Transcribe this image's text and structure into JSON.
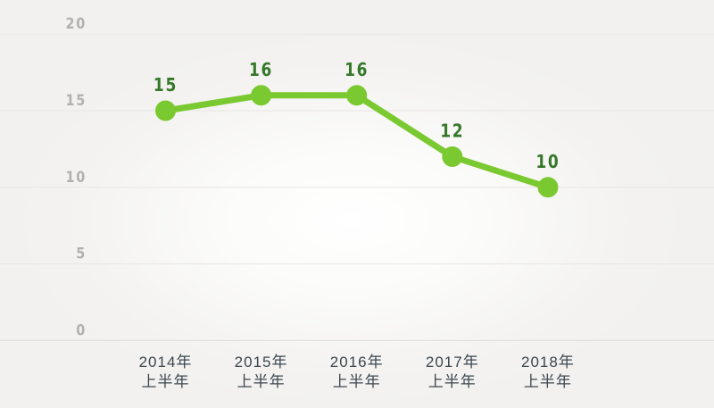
{
  "chart_data": {
    "type": "line",
    "title": "",
    "xlabel": "",
    "ylabel": "",
    "categories": [
      [
        "2014年",
        "上半年"
      ],
      [
        "2015年",
        "上半年"
      ],
      [
        "2016年",
        "上半年"
      ],
      [
        "2017年",
        "上半年"
      ],
      [
        "2018年",
        "上半年"
      ]
    ],
    "values": [
      15,
      16,
      16,
      12,
      10
    ],
    "data_labels": [
      "15",
      "16",
      "16",
      "12",
      "10"
    ],
    "ylim": [
      0,
      20
    ],
    "yticks": [
      0,
      5,
      10,
      15,
      20
    ],
    "ytick_labels": [
      "0",
      "5",
      "10",
      "15",
      "20"
    ],
    "grid": "horizontal-only",
    "legend": "none",
    "colors": {
      "line": "#7bc930",
      "point": "#7bc930",
      "data_label": "#35782a",
      "y_tick_label": "#b3b1ad",
      "x_tick_label": "#3c474f",
      "gridline": "#e7e6e3",
      "zero_gridline": "#dedcd9",
      "background_center": "#ffffff",
      "background_edge": "#f2f1ef"
    }
  }
}
